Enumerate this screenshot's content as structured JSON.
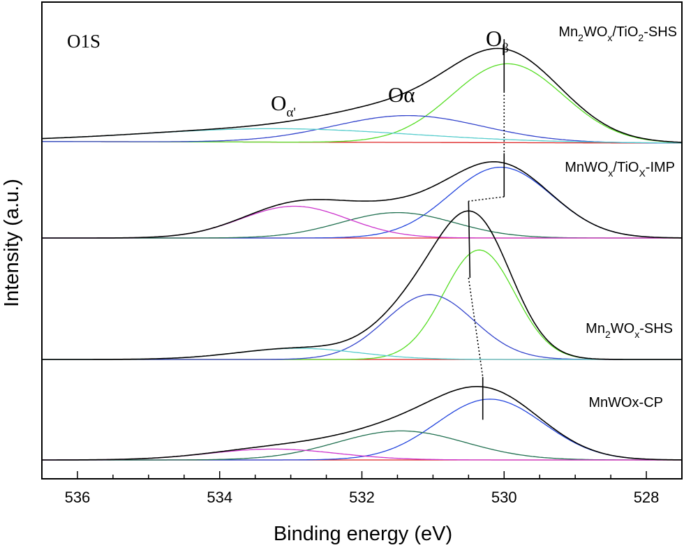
{
  "chart_data": {
    "type": "line",
    "xlabel": "Binding energy (eV)",
    "ylabel": "Intensity (a.u.)",
    "xlim": [
      536.5,
      527.5
    ],
    "x_reversed": true,
    "x_ticks": [
      536,
      534,
      532,
      530,
      528
    ],
    "y_ticks_shown": false,
    "grid": false,
    "region_label": "O1S",
    "peak_labels": {
      "beta_main": "O",
      "beta_sub": "β",
      "alpha_text": "Oα",
      "alpha2_main": "O",
      "alpha2_sub": "α'"
    },
    "colors": {
      "envelope": "#000000",
      "beta_light": "#55dd22",
      "beta_blue": "#2244dd",
      "alpha_blue": "#3344cc",
      "alpha_dark": "#1f6f4f",
      "alpha2_cyan": "#55cccc",
      "alpha2_magenta": "#cc33cc",
      "baseline_red": "#dd2222"
    },
    "panels": [
      {
        "name": "Mn2WOx/TiO2-SHS",
        "label_segments": [
          {
            "t": "Mn",
            "sub": false
          },
          {
            "t": "2",
            "sub": true
          },
          {
            "t": "WO",
            "sub": false
          },
          {
            "t": "x",
            "sub": true
          },
          {
            "t": "/TiO",
            "sub": false
          },
          {
            "t": "2",
            "sub": true
          },
          {
            "t": "-SHS",
            "sub": false
          }
        ],
        "baseline_left": 0.02,
        "baseline_right": 0.0,
        "components": [
          {
            "role": "O_beta",
            "color_key": "beta_light",
            "center": 529.95,
            "height": 1.0,
            "width": 0.78
          },
          {
            "role": "O_alpha",
            "color_key": "alpha_blue",
            "center": 531.35,
            "height": 0.34,
            "width": 1.05
          },
          {
            "role": "O_alpha2",
            "color_key": "alpha2_cyan",
            "center": 533.2,
            "height": 0.17,
            "width": 1.9
          }
        ],
        "beta_marker_energy": 530.0
      },
      {
        "name": "MnWOx/TiOX-IMP",
        "label_segments": [
          {
            "t": "MnWO",
            "sub": false
          },
          {
            "t": "x",
            "sub": true
          },
          {
            "t": "/TiO",
            "sub": false
          },
          {
            "t": "X",
            "sub": true
          },
          {
            "t": "-IMP",
            "sub": false
          }
        ],
        "baseline_left": 0.0,
        "baseline_right": 0.0,
        "components": [
          {
            "role": "O_beta",
            "color_key": "beta_blue",
            "center": 530.05,
            "height": 0.78,
            "width": 0.72
          },
          {
            "role": "O_alpha",
            "color_key": "alpha_dark",
            "center": 531.5,
            "height": 0.28,
            "width": 0.8
          },
          {
            "role": "O_alpha2",
            "color_key": "alpha2_magenta",
            "center": 532.95,
            "height": 0.35,
            "width": 0.75
          }
        ],
        "beta_marker_energy": 530.0
      },
      {
        "name": "Mn2WOx-SHS",
        "label_segments": [
          {
            "t": "Mn",
            "sub": false
          },
          {
            "t": "2",
            "sub": true
          },
          {
            "t": "WO",
            "sub": false
          },
          {
            "t": "x",
            "sub": true
          },
          {
            "t": "-SHS",
            "sub": false
          }
        ],
        "baseline_left": 0.0,
        "baseline_right": 0.0,
        "components": [
          {
            "role": "O_beta",
            "color_key": "beta_light",
            "center": 530.35,
            "height": 0.98,
            "width": 0.5
          },
          {
            "role": "O_alpha",
            "color_key": "alpha_blue",
            "center": 531.05,
            "height": 0.58,
            "width": 0.62
          },
          {
            "role": "O_alpha2",
            "color_key": "alpha2_cyan",
            "center": 532.9,
            "height": 0.1,
            "width": 0.85
          }
        ],
        "beta_marker_energy": 530.5
      },
      {
        "name": "MnWOx-CP",
        "label_segments": [
          {
            "t": "MnWOx-CP",
            "sub": false
          }
        ],
        "baseline_left": 0.0,
        "baseline_right": 0.0,
        "components": [
          {
            "role": "O_beta",
            "color_key": "beta_blue",
            "center": 530.2,
            "height": 0.67,
            "width": 0.75
          },
          {
            "role": "O_alpha",
            "color_key": "alpha_dark",
            "center": 531.45,
            "height": 0.32,
            "width": 0.9
          },
          {
            "role": "O_alpha2",
            "color_key": "alpha2_magenta",
            "center": 533.25,
            "height": 0.12,
            "width": 0.9
          }
        ],
        "beta_marker_energy": 530.3
      }
    ]
  }
}
